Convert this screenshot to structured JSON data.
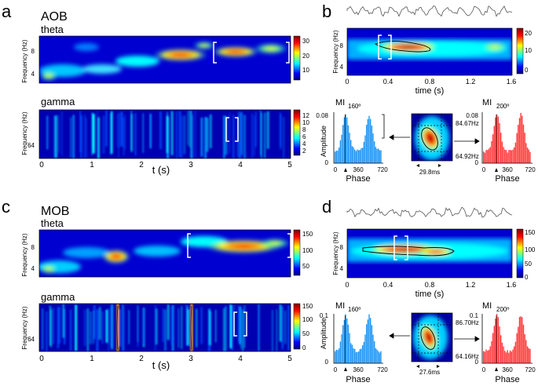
{
  "colors": {
    "jet_dark": "#00007f",
    "jet_blue": "#0000ff",
    "jet_cyan": "#00ffff",
    "jet_yellow": "#ffff00",
    "jet_red": "#ff0000",
    "jet_darkred": "#7f0000",
    "bar_blue": "#2196f3",
    "bar_red": "#ff3b3b"
  },
  "panels": {
    "a": {
      "letter": "a",
      "title": "AOB"
    },
    "b": {
      "letter": "b"
    },
    "c": {
      "letter": "c",
      "title": "MOB"
    },
    "d": {
      "letter": "d"
    }
  },
  "spectrograms": {
    "theta_label": "theta",
    "gamma_label": "gamma",
    "ylabel": "Frequency (Hz)",
    "xlabel": "t (s)",
    "x_ticks": [
      "0",
      "1",
      "2",
      "3",
      "4",
      "5"
    ],
    "theta_yticks": [
      "8",
      "4"
    ],
    "gamma_ytick": "64"
  },
  "colorbars": {
    "a_theta": [
      "30",
      "20",
      "10"
    ],
    "a_gamma": [
      "12",
      "10",
      "8",
      "6",
      "4",
      "2"
    ],
    "b_theta": [
      "20",
      "10",
      "0"
    ],
    "c_theta": [
      "150",
      "100",
      "50"
    ],
    "c_gamma": [
      "150",
      "100",
      "50",
      "0"
    ],
    "d_theta": [
      "150",
      "100",
      "50",
      "0"
    ]
  },
  "time_plots": {
    "xlabel": "time (s)",
    "ylabel": "Frequency (Hz)",
    "x_ticks": [
      "0",
      "0.4",
      "0.8",
      "1.2",
      "1.6"
    ],
    "y_ticks": [
      "8",
      "4"
    ]
  },
  "mi_plots": {
    "mi_label": "MI",
    "amplitude_label": "Amplitude",
    "phase_label": "Phase",
    "x_ticks": [
      "0",
      "360",
      "720"
    ],
    "b_left": {
      "ytick_top": "0.08",
      "ytick_bottom": "0",
      "angle": "160º"
    },
    "b_right": {
      "ytick_top": "0.08",
      "ytick_bottom": "0",
      "angle": "200º"
    },
    "d_left": {
      "ytick_top": "0.1",
      "ytick_bottom": "0",
      "angle": "160º"
    },
    "d_right": {
      "ytick_top": "0.1",
      "ytick_bottom": "0",
      "angle": "200º"
    }
  },
  "comodulograms": {
    "b": {
      "freq_high": "84.67Hz",
      "freq_low": "64.92Hz",
      "duration": "29.8ms"
    },
    "d": {
      "freq_high": "86.70Hz",
      "freq_low": "64.16Hz",
      "duration": "27.6ms"
    }
  }
}
